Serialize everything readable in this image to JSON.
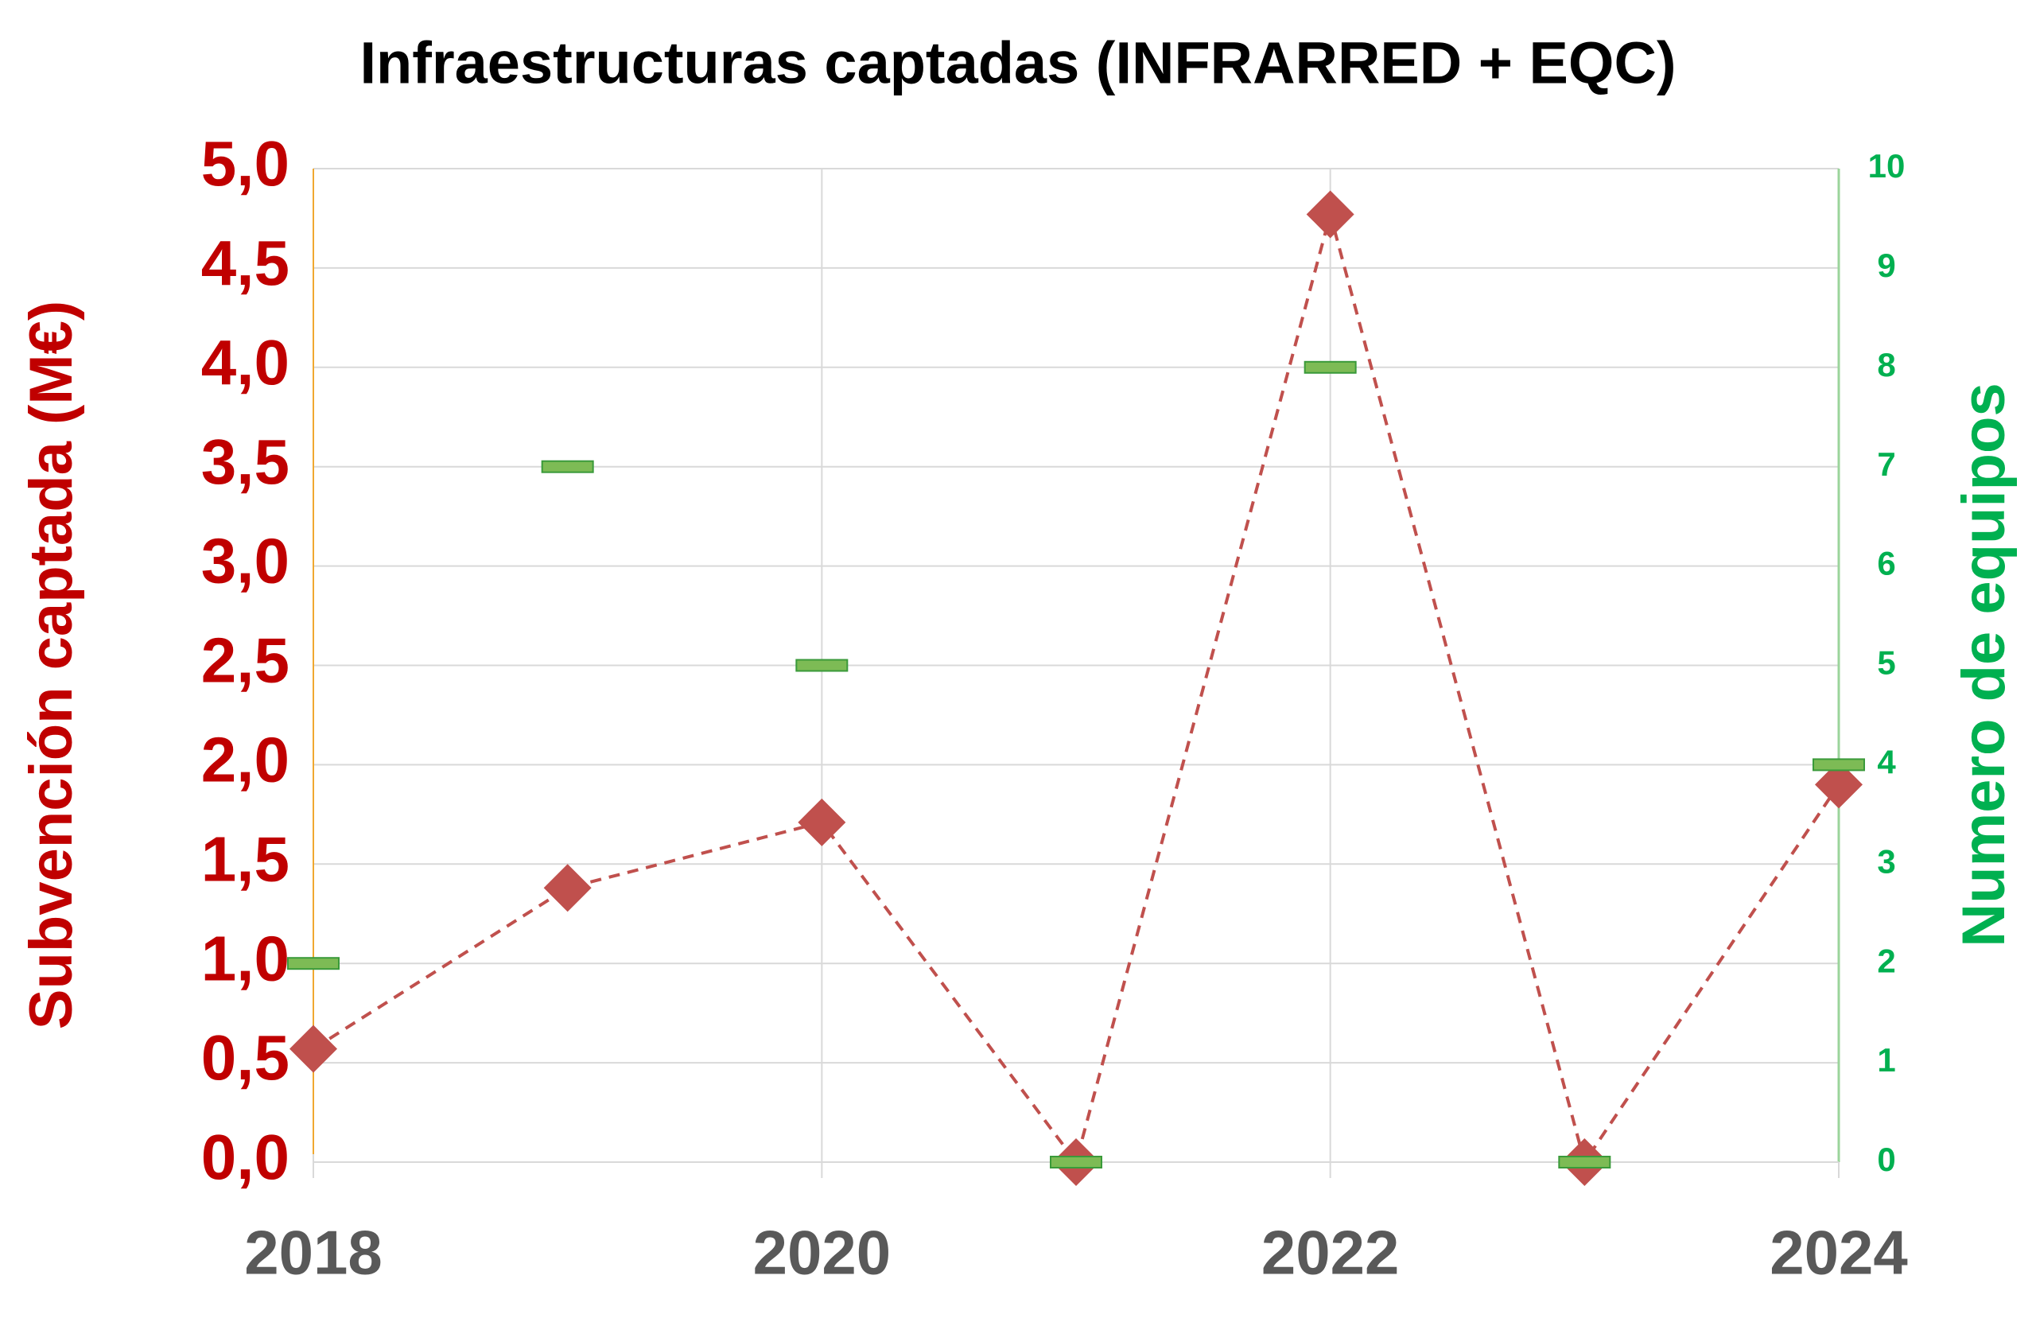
{
  "chart_data": {
    "type": "line",
    "title": "Infraestructuras captadas (INFRARRED + EQC)",
    "y_label": "Subvención captada (M€)",
    "y2_label": "Numero de equipos",
    "x": [
      2018,
      2019,
      2020,
      2021,
      2022,
      2023,
      2024
    ],
    "xlim": [
      2018,
      2024
    ],
    "xticks": [
      2018,
      2020,
      2022,
      2024
    ],
    "ylim": [
      0,
      5
    ],
    "yticks": [
      {
        "value": 0,
        "label": "0,0"
      },
      {
        "value": 0.5,
        "label": "0,5"
      },
      {
        "value": 1,
        "label": "1,0"
      },
      {
        "value": 1.5,
        "label": "1,5"
      },
      {
        "value": 2,
        "label": "2,0"
      },
      {
        "value": 2.5,
        "label": "2,5"
      },
      {
        "value": 3,
        "label": "3,0"
      },
      {
        "value": 3.5,
        "label": "3,5"
      },
      {
        "value": 4,
        "label": "4,0"
      },
      {
        "value": 4.5,
        "label": "4,5"
      },
      {
        "value": 5,
        "label": "5,0"
      }
    ],
    "y2lim": [
      0,
      10
    ],
    "y2ticks": [
      0,
      1,
      2,
      3,
      4,
      5,
      6,
      7,
      8,
      9,
      10
    ],
    "grid": true,
    "series": [
      {
        "color": "#c0504d",
        "marker": "diamond",
        "line": "dashed",
        "values": [
          0.57,
          1.38,
          1.71,
          0,
          4.77,
          0,
          1.9
        ]
      },
      {
        "color": "#7dbb55",
        "marker": "dash",
        "line": "none",
        "axis": "y2",
        "values": [
          2,
          7,
          5,
          0,
          8,
          0,
          4
        ]
      }
    ]
  }
}
